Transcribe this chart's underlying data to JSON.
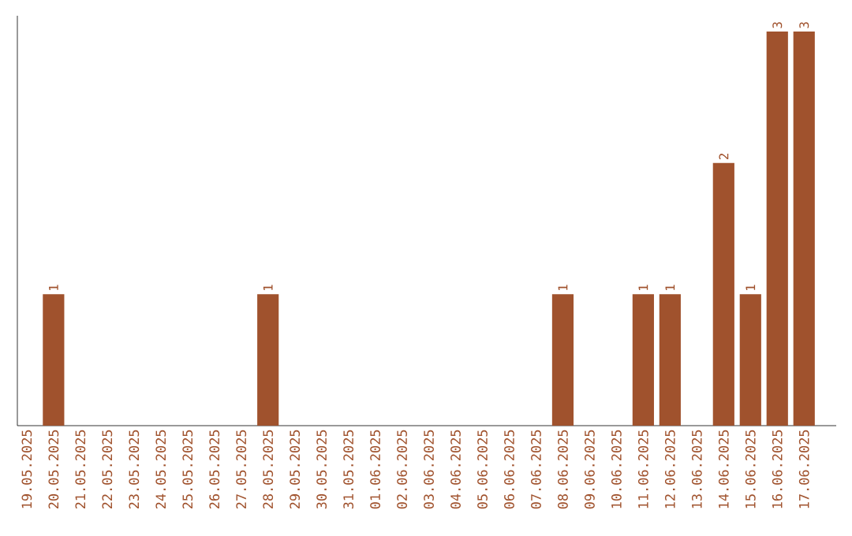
{
  "chart_data": {
    "type": "bar",
    "color": "#a0522d",
    "categories": [
      "19.05.2025",
      "20.05.2025",
      "21.05.2025",
      "22.05.2025",
      "23.05.2025",
      "24.05.2025",
      "25.05.2025",
      "26.05.2025",
      "27.05.2025",
      "28.05.2025",
      "29.05.2025",
      "30.05.2025",
      "31.05.2025",
      "01.06.2025",
      "02.06.2025",
      "03.06.2025",
      "04.06.2025",
      "05.06.2025",
      "06.06.2025",
      "07.06.2025",
      "08.06.2025",
      "09.06.2025",
      "10.06.2025",
      "11.06.2025",
      "12.06.2025",
      "13.06.2025",
      "14.06.2025",
      "15.06.2025",
      "16.06.2025",
      "17.06.2025"
    ],
    "values": [
      0,
      1,
      0,
      0,
      0,
      0,
      0,
      0,
      0,
      1,
      0,
      0,
      0,
      0,
      0,
      0,
      0,
      0,
      0,
      0,
      1,
      0,
      0,
      1,
      1,
      0,
      2,
      1,
      3,
      3
    ],
    "value_labels": [
      null,
      "1",
      null,
      null,
      null,
      null,
      null,
      null,
      null,
      "1",
      null,
      null,
      null,
      null,
      null,
      null,
      null,
      null,
      null,
      null,
      "1",
      null,
      null,
      "1",
      "1",
      null,
      "2",
      "1",
      "3",
      "3"
    ],
    "grid": false
  }
}
